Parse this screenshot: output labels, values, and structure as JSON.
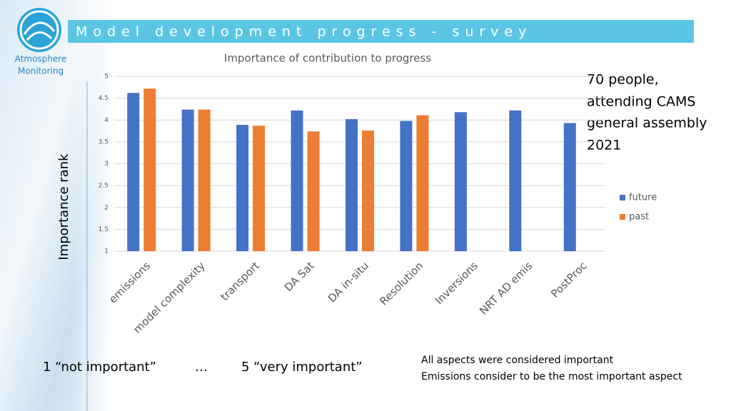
{
  "header": {
    "title": "Model development progress - survey",
    "logo_text": [
      "Atmosphere",
      "Monitoring"
    ]
  },
  "annotation": [
    "70 people,",
    "attending CAMS",
    "general assembly",
    "2021"
  ],
  "footer": {
    "scale_low": "1 “not important”",
    "ellipsis": "…",
    "scale_high": "5 “very important”",
    "notes": [
      "All aspects were considered important",
      "Emissions consider to be the most important aspect"
    ]
  },
  "chart_data": {
    "type": "bar",
    "title": "Importance of contribution to progress",
    "y_label": "Importance rank",
    "categories": [
      "emissions",
      "model complexity",
      "transport",
      "DA Sat",
      "DA in-situ",
      "Resolution",
      "Inversions",
      "NRT AD emis",
      "PostProc"
    ],
    "series": [
      {
        "name": "future",
        "color": "#4472c4",
        "values": [
          4.62,
          4.24,
          3.89,
          4.22,
          4.02,
          3.98,
          4.18,
          4.22,
          3.93
        ]
      },
      {
        "name": "past",
        "color": "#ed7d31",
        "values": [
          4.72,
          4.24,
          3.87,
          3.74,
          3.76,
          4.11,
          null,
          null,
          null
        ]
      }
    ],
    "ylim": [
      1,
      5
    ],
    "yticks": [
      1,
      1.5,
      2,
      2.5,
      3,
      3.5,
      4,
      4.5,
      5
    ],
    "grid": true,
    "legend": "right"
  }
}
